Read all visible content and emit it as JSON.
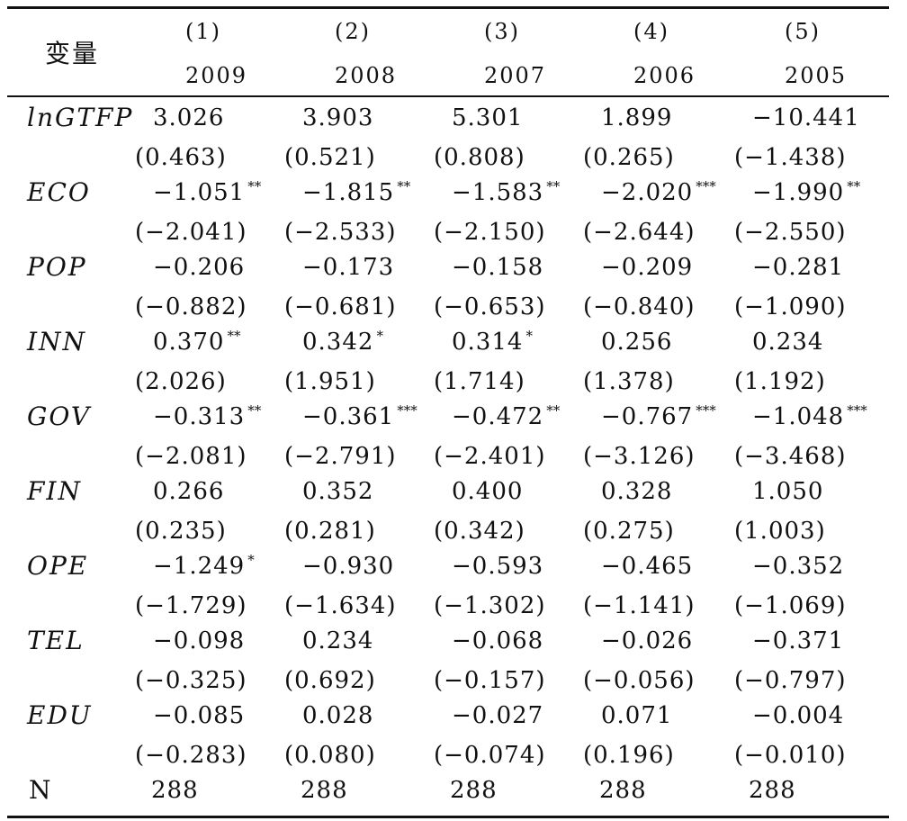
{
  "table": {
    "header": {
      "variable_label": "变量",
      "columns": [
        {
          "num": "(1)",
          "year": "2009"
        },
        {
          "num": "(2)",
          "year": "2008"
        },
        {
          "num": "(3)",
          "year": "2007"
        },
        {
          "num": "(4)",
          "year": "2006"
        },
        {
          "num": "(5)",
          "year": "2005"
        }
      ]
    },
    "rows": [
      {
        "variable": "lnGTFP",
        "coef": [
          {
            "v": "3.026",
            "s": ""
          },
          {
            "v": "3.903",
            "s": ""
          },
          {
            "v": "5.301",
            "s": ""
          },
          {
            "v": "1.899",
            "s": ""
          },
          {
            "v": "−10.441",
            "s": ""
          }
        ],
        "t": [
          "(0.463)",
          "(0.521)",
          "(0.808)",
          "(0.265)",
          "(−1.438)"
        ]
      },
      {
        "variable": "ECO",
        "coef": [
          {
            "v": "−1.051",
            "s": "**"
          },
          {
            "v": "−1.815",
            "s": "**"
          },
          {
            "v": "−1.583",
            "s": "**"
          },
          {
            "v": "−2.020",
            "s": "***"
          },
          {
            "v": "−1.990",
            "s": "**"
          }
        ],
        "t": [
          "(−2.041)",
          "(−2.533)",
          "(−2.150)",
          "(−2.644)",
          "(−2.550)"
        ]
      },
      {
        "variable": "POP",
        "coef": [
          {
            "v": "−0.206",
            "s": ""
          },
          {
            "v": "−0.173",
            "s": ""
          },
          {
            "v": "−0.158",
            "s": ""
          },
          {
            "v": "−0.209",
            "s": ""
          },
          {
            "v": "−0.281",
            "s": ""
          }
        ],
        "t": [
          "(−0.882)",
          "(−0.681)",
          "(−0.653)",
          "(−0.840)",
          "(−1.090)"
        ]
      },
      {
        "variable": "INN",
        "coef": [
          {
            "v": "0.370",
            "s": "**"
          },
          {
            "v": "0.342",
            "s": "*"
          },
          {
            "v": "0.314",
            "s": "*"
          },
          {
            "v": "0.256",
            "s": ""
          },
          {
            "v": "0.234",
            "s": ""
          }
        ],
        "t": [
          "(2.026)",
          "(1.951)",
          "(1.714)",
          "(1.378)",
          "(1.192)"
        ]
      },
      {
        "variable": "GOV",
        "coef": [
          {
            "v": "−0.313",
            "s": "**"
          },
          {
            "v": "−0.361",
            "s": "***"
          },
          {
            "v": "−0.472",
            "s": "**"
          },
          {
            "v": "−0.767",
            "s": "***"
          },
          {
            "v": "−1.048",
            "s": "***"
          }
        ],
        "t": [
          "(−2.081)",
          "(−2.791)",
          "(−2.401)",
          "(−3.126)",
          "(−3.468)"
        ]
      },
      {
        "variable": "FIN",
        "coef": [
          {
            "v": "0.266",
            "s": ""
          },
          {
            "v": "0.352",
            "s": ""
          },
          {
            "v": "0.400",
            "s": ""
          },
          {
            "v": "0.328",
            "s": ""
          },
          {
            "v": "1.050",
            "s": ""
          }
        ],
        "t": [
          "(0.235)",
          "(0.281)",
          "(0.342)",
          "(0.275)",
          "(1.003)"
        ]
      },
      {
        "variable": "OPE",
        "coef": [
          {
            "v": "−1.249",
            "s": "*"
          },
          {
            "v": "−0.930",
            "s": ""
          },
          {
            "v": "−0.593",
            "s": ""
          },
          {
            "v": "−0.465",
            "s": ""
          },
          {
            "v": "−0.352",
            "s": ""
          }
        ],
        "t": [
          "(−1.729)",
          "(−1.634)",
          "(−1.302)",
          "(−1.141)",
          "(−1.069)"
        ]
      },
      {
        "variable": "TEL",
        "coef": [
          {
            "v": "−0.098",
            "s": ""
          },
          {
            "v": "0.234",
            "s": ""
          },
          {
            "v": "−0.068",
            "s": ""
          },
          {
            "v": "−0.026",
            "s": ""
          },
          {
            "v": "−0.371",
            "s": ""
          }
        ],
        "t": [
          "(−0.325)",
          "(0.692)",
          "(−0.157)",
          "(−0.056)",
          "(−0.797)"
        ]
      },
      {
        "variable": "EDU",
        "coef": [
          {
            "v": "−0.085",
            "s": ""
          },
          {
            "v": "0.028",
            "s": ""
          },
          {
            "v": "−0.027",
            "s": ""
          },
          {
            "v": "0.071",
            "s": ""
          },
          {
            "v": "−0.004",
            "s": ""
          }
        ],
        "t": [
          "(−0.283)",
          "(0.080)",
          "(−0.074)",
          "(0.196)",
          "(−0.010)"
        ]
      }
    ],
    "n_row": {
      "label": "N",
      "values": [
        "288",
        "288",
        "288",
        "288",
        "288"
      ]
    }
  }
}
